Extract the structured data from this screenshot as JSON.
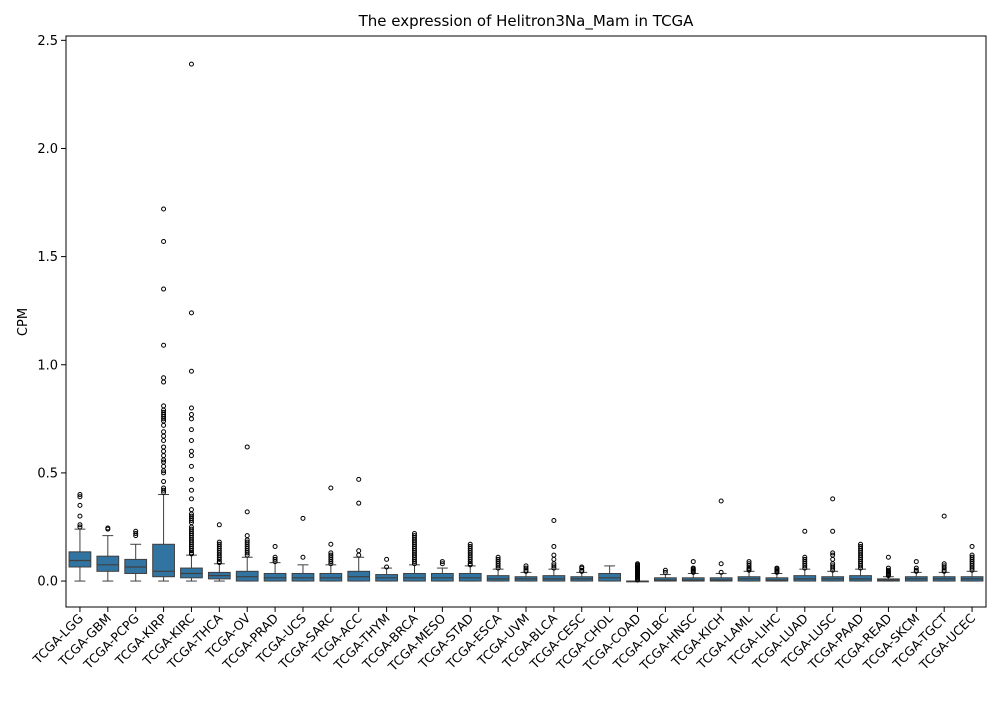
{
  "chart_data": {
    "type": "box",
    "title": "The expression of Helitron3Na_Mam in TCGA",
    "xlabel": "",
    "ylabel": "CPM",
    "ylim": [
      -0.12,
      2.52
    ],
    "yticks": [
      0.0,
      0.5,
      1.0,
      1.5,
      2.0,
      2.5
    ],
    "ytick_labels": [
      "0.0",
      "0.5",
      "1.0",
      "1.5",
      "2.0",
      "2.5"
    ],
    "grid": false,
    "box_color": "#3274a1",
    "categories": [
      "TCGA-LGG",
      "TCGA-GBM",
      "TCGA-PCPG",
      "TCGA-KIRP",
      "TCGA-KIRC",
      "TCGA-THCA",
      "TCGA-OV",
      "TCGA-PRAD",
      "TCGA-UCS",
      "TCGA-SARC",
      "TCGA-ACC",
      "TCGA-THYM",
      "TCGA-BRCA",
      "TCGA-MESO",
      "TCGA-STAD",
      "TCGA-ESCA",
      "TCGA-UVM",
      "TCGA-BLCA",
      "TCGA-CESC",
      "TCGA-CHOL",
      "TCGA-COAD",
      "TCGA-DLBC",
      "TCGA-HNSC",
      "TCGA-KICH",
      "TCGA-LAML",
      "TCGA-LIHC",
      "TCGA-LUAD",
      "TCGA-LUSC",
      "TCGA-PAAD",
      "TCGA-READ",
      "TCGA-SKCM",
      "TCGA-TGCT",
      "TCGA-UCEC"
    ],
    "boxes": [
      {
        "whislo": 0.0,
        "q1": 0.065,
        "med": 0.095,
        "q3": 0.135,
        "whishi": 0.24,
        "fliers": [
          0.25,
          0.26,
          0.3,
          0.35,
          0.39,
          0.4
        ]
      },
      {
        "whislo": 0.0,
        "q1": 0.045,
        "med": 0.075,
        "q3": 0.115,
        "whishi": 0.21,
        "fliers": [
          0.24,
          0.245
        ]
      },
      {
        "whislo": 0.0,
        "q1": 0.035,
        "med": 0.065,
        "q3": 0.1,
        "whishi": 0.17,
        "fliers": [
          0.21,
          0.22,
          0.23
        ]
      },
      {
        "whislo": 0.0,
        "q1": 0.02,
        "med": 0.045,
        "q3": 0.17,
        "whishi": 0.4,
        "fliers": [
          0.41,
          0.42,
          0.43,
          0.46,
          0.5,
          0.51,
          0.53,
          0.55,
          0.56,
          0.58,
          0.6,
          0.62,
          0.65,
          0.67,
          0.69,
          0.72,
          0.74,
          0.75,
          0.76,
          0.77,
          0.78,
          0.79,
          0.81,
          0.92,
          0.94,
          1.09,
          1.35,
          1.57,
          1.72
        ]
      },
      {
        "whislo": 0.0,
        "q1": 0.015,
        "med": 0.035,
        "q3": 0.06,
        "whishi": 0.12,
        "fliers": [
          0.125,
          0.13,
          0.14,
          0.15,
          0.16,
          0.17,
          0.18,
          0.19,
          0.2,
          0.21,
          0.22,
          0.23,
          0.24,
          0.25,
          0.27,
          0.28,
          0.29,
          0.3,
          0.31,
          0.33,
          0.38,
          0.42,
          0.47,
          0.53,
          0.58,
          0.6,
          0.65,
          0.7,
          0.75,
          0.77,
          0.8,
          0.97,
          1.24,
          2.39
        ]
      },
      {
        "whislo": 0.0,
        "q1": 0.01,
        "med": 0.025,
        "q3": 0.04,
        "whishi": 0.08,
        "fliers": [
          0.085,
          0.09,
          0.1,
          0.11,
          0.12,
          0.13,
          0.14,
          0.15,
          0.16,
          0.17,
          0.18,
          0.26
        ]
      },
      {
        "whislo": 0.0,
        "q1": 0.0,
        "med": 0.02,
        "q3": 0.045,
        "whishi": 0.11,
        "fliers": [
          0.12,
          0.13,
          0.14,
          0.15,
          0.16,
          0.17,
          0.18,
          0.19,
          0.21,
          0.32,
          0.62
        ]
      },
      {
        "whislo": 0.0,
        "q1": 0.0,
        "med": 0.015,
        "q3": 0.035,
        "whishi": 0.085,
        "fliers": [
          0.09,
          0.1,
          0.11,
          0.16
        ]
      },
      {
        "whislo": 0.0,
        "q1": 0.0,
        "med": 0.015,
        "q3": 0.035,
        "whishi": 0.075,
        "fliers": [
          0.11,
          0.29
        ]
      },
      {
        "whislo": 0.0,
        "q1": 0.0,
        "med": 0.015,
        "q3": 0.035,
        "whishi": 0.075,
        "fliers": [
          0.08,
          0.09,
          0.1,
          0.11,
          0.12,
          0.13,
          0.17,
          0.43
        ]
      },
      {
        "whislo": 0.0,
        "q1": 0.0,
        "med": 0.02,
        "q3": 0.045,
        "whishi": 0.11,
        "fliers": [
          0.12,
          0.14,
          0.36,
          0.47
        ]
      },
      {
        "whislo": 0.0,
        "q1": 0.0,
        "med": 0.015,
        "q3": 0.03,
        "whishi": 0.06,
        "fliers": [
          0.065,
          0.1
        ]
      },
      {
        "whislo": 0.0,
        "q1": 0.0,
        "med": 0.015,
        "q3": 0.035,
        "whishi": 0.075,
        "fliers": [
          0.08,
          0.09,
          0.1,
          0.11,
          0.12,
          0.13,
          0.14,
          0.15,
          0.16,
          0.17,
          0.18,
          0.19,
          0.2,
          0.21,
          0.22
        ]
      },
      {
        "whislo": 0.0,
        "q1": 0.0,
        "med": 0.015,
        "q3": 0.035,
        "whishi": 0.06,
        "fliers": [
          0.08,
          0.09
        ]
      },
      {
        "whislo": 0.0,
        "q1": 0.0,
        "med": 0.015,
        "q3": 0.035,
        "whishi": 0.07,
        "fliers": [
          0.075,
          0.08,
          0.09,
          0.1,
          0.11,
          0.12,
          0.13,
          0.14,
          0.15,
          0.16,
          0.17
        ]
      },
      {
        "whislo": 0.0,
        "q1": 0.0,
        "med": 0.01,
        "q3": 0.025,
        "whishi": 0.055,
        "fliers": [
          0.06,
          0.07,
          0.08,
          0.09,
          0.1,
          0.11
        ]
      },
      {
        "whislo": 0.0,
        "q1": 0.0,
        "med": 0.01,
        "q3": 0.02,
        "whishi": 0.04,
        "fliers": [
          0.045,
          0.05,
          0.06,
          0.07
        ]
      },
      {
        "whislo": 0.0,
        "q1": 0.0,
        "med": 0.01,
        "q3": 0.025,
        "whishi": 0.055,
        "fliers": [
          0.06,
          0.07,
          0.08,
          0.1,
          0.12,
          0.16,
          0.28
        ]
      },
      {
        "whislo": 0.0,
        "q1": 0.0,
        "med": 0.01,
        "q3": 0.02,
        "whishi": 0.04,
        "fliers": [
          0.045,
          0.05,
          0.06,
          0.065
        ]
      },
      {
        "whislo": 0.0,
        "q1": 0.0,
        "med": 0.015,
        "q3": 0.035,
        "whishi": 0.07,
        "fliers": []
      },
      {
        "whislo": 0.0,
        "q1": 0.0,
        "med": 0.0,
        "q3": 0.0,
        "whishi": 0.0,
        "fliers": [
          0.005,
          0.01,
          0.015,
          0.02,
          0.025,
          0.03,
          0.035,
          0.04,
          0.045,
          0.05,
          0.055,
          0.06,
          0.065,
          0.07,
          0.075,
          0.08
        ]
      },
      {
        "whislo": 0.0,
        "q1": 0.0,
        "med": 0.005,
        "q3": 0.015,
        "whishi": 0.03,
        "fliers": [
          0.04,
          0.05
        ]
      },
      {
        "whislo": 0.0,
        "q1": 0.0,
        "med": 0.005,
        "q3": 0.015,
        "whishi": 0.035,
        "fliers": [
          0.04,
          0.045,
          0.05,
          0.055,
          0.06,
          0.09
        ]
      },
      {
        "whislo": 0.0,
        "q1": 0.0,
        "med": 0.005,
        "q3": 0.015,
        "whishi": 0.035,
        "fliers": [
          0.04,
          0.08,
          0.37
        ]
      },
      {
        "whislo": 0.0,
        "q1": 0.0,
        "med": 0.01,
        "q3": 0.02,
        "whishi": 0.045,
        "fliers": [
          0.05,
          0.055,
          0.06,
          0.07,
          0.08,
          0.09
        ]
      },
      {
        "whislo": 0.0,
        "q1": 0.0,
        "med": 0.005,
        "q3": 0.015,
        "whishi": 0.035,
        "fliers": [
          0.04,
          0.045,
          0.05,
          0.055,
          0.06
        ]
      },
      {
        "whislo": 0.0,
        "q1": 0.0,
        "med": 0.01,
        "q3": 0.025,
        "whishi": 0.055,
        "fliers": [
          0.06,
          0.07,
          0.08,
          0.09,
          0.1,
          0.11,
          0.23
        ]
      },
      {
        "whislo": 0.0,
        "q1": 0.0,
        "med": 0.01,
        "q3": 0.02,
        "whishi": 0.045,
        "fliers": [
          0.05,
          0.06,
          0.07,
          0.08,
          0.1,
          0.12,
          0.13,
          0.23,
          0.38
        ]
      },
      {
        "whislo": 0.0,
        "q1": 0.0,
        "med": 0.01,
        "q3": 0.025,
        "whishi": 0.055,
        "fliers": [
          0.06,
          0.07,
          0.08,
          0.09,
          0.1,
          0.11,
          0.12,
          0.13,
          0.14,
          0.15,
          0.16,
          0.17
        ]
      },
      {
        "whislo": 0.0,
        "q1": 0.0,
        "med": 0.005,
        "q3": 0.01,
        "whishi": 0.02,
        "fliers": [
          0.025,
          0.03,
          0.035,
          0.04,
          0.045,
          0.05,
          0.06,
          0.11
        ]
      },
      {
        "whislo": 0.0,
        "q1": 0.0,
        "med": 0.01,
        "q3": 0.02,
        "whishi": 0.04,
        "fliers": [
          0.045,
          0.05,
          0.06,
          0.09
        ]
      },
      {
        "whislo": 0.0,
        "q1": 0.0,
        "med": 0.01,
        "q3": 0.02,
        "whishi": 0.04,
        "fliers": [
          0.045,
          0.05,
          0.06,
          0.07,
          0.08,
          0.3
        ]
      },
      {
        "whislo": 0.0,
        "q1": 0.0,
        "med": 0.01,
        "q3": 0.02,
        "whishi": 0.045,
        "fliers": [
          0.05,
          0.06,
          0.07,
          0.08,
          0.09,
          0.1,
          0.11,
          0.12,
          0.16
        ]
      }
    ]
  }
}
